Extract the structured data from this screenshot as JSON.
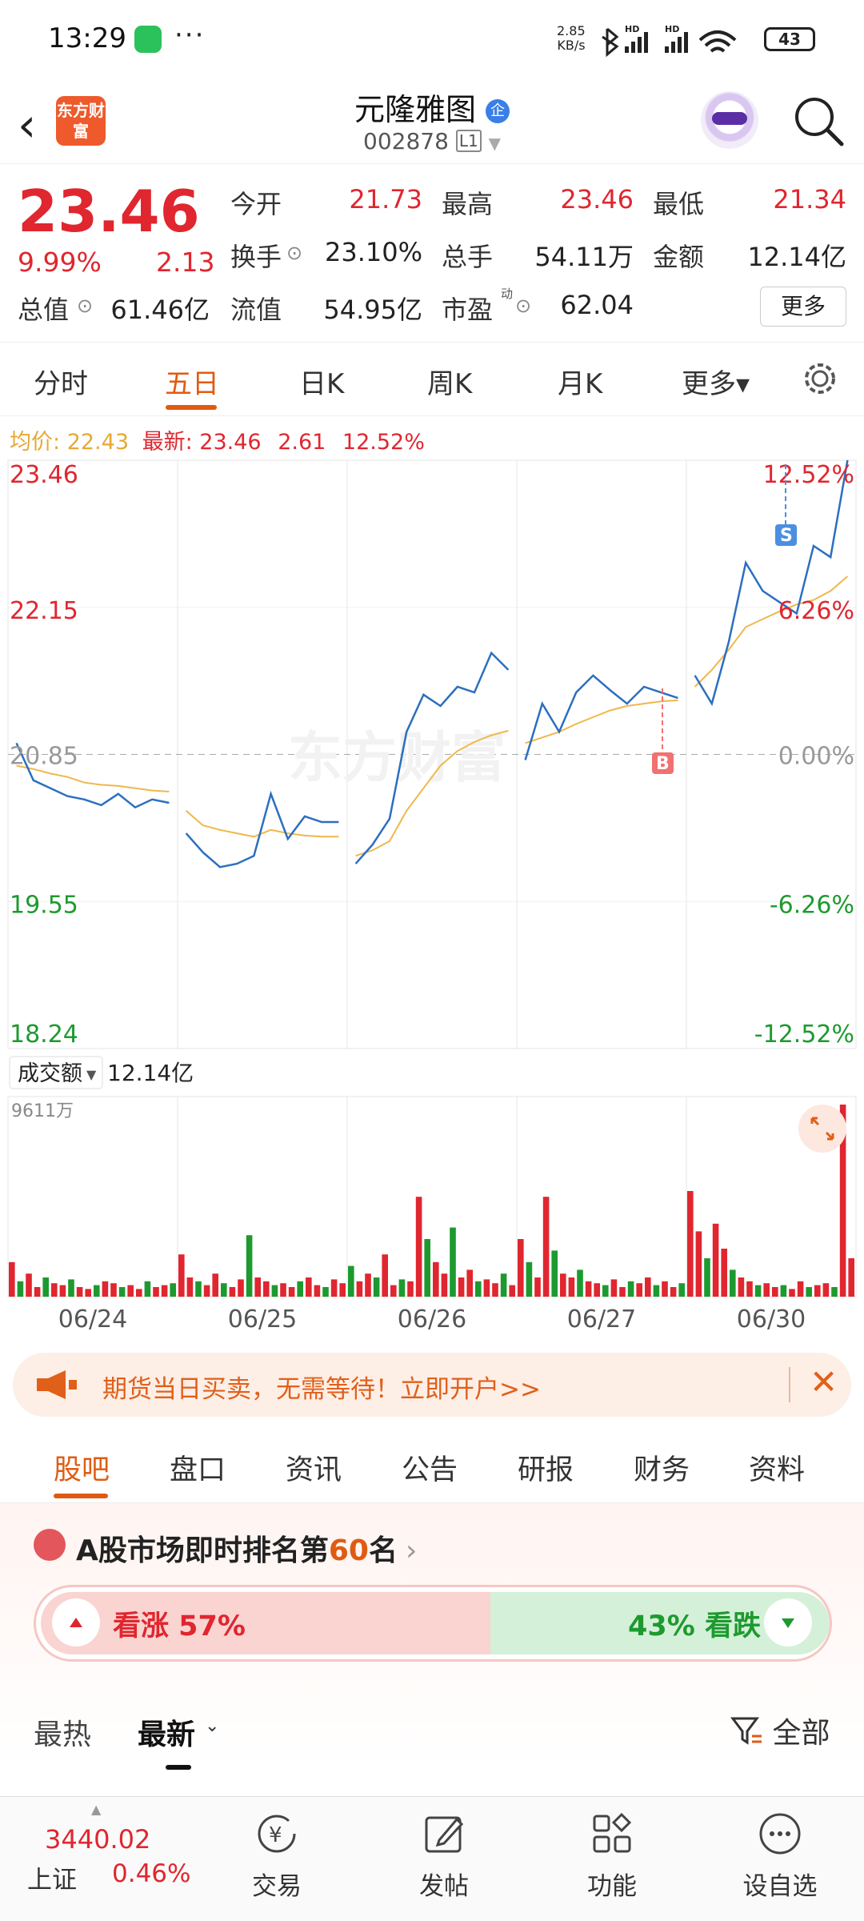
{
  "status": {
    "time": "13:29",
    "net_speed": "2.85",
    "net_unit": "KB/s",
    "battery": "43",
    "hd1": "HD",
    "hd2": "HD"
  },
  "header": {
    "back": "‹",
    "logo_text": "东方财富",
    "name": "元隆雅图",
    "badge": "企",
    "code": "002878",
    "level": "L1"
  },
  "quote": {
    "price": "23.46",
    "pct": "9.99%",
    "change": "2.13",
    "open_label": "今开",
    "open": "21.73",
    "high_label": "最高",
    "high": "23.46",
    "low_label": "最低",
    "low": "21.34",
    "turnover_label": "换手",
    "turnover": "23.10%",
    "volume_label": "总手",
    "volume": "54.11万",
    "amount_label": "金额",
    "amount": "12.14亿",
    "mktcap_label": "总值",
    "mktcap": "61.46亿",
    "float_label": "流值",
    "float": "54.95亿",
    "pe_label": "市盈",
    "pe_sup": "动",
    "pe": "62.04",
    "more": "更多"
  },
  "tabs": [
    {
      "label": "分时"
    },
    {
      "label": "五日"
    },
    {
      "label": "日K"
    },
    {
      "label": "周K"
    },
    {
      "label": "月K"
    },
    {
      "label": "更多▾"
    }
  ],
  "infoline": {
    "avg_label": "均价:",
    "avg": "22.43",
    "latest_label": "最新:",
    "latest": "23.46",
    "change": "2.61",
    "pct": "12.52%"
  },
  "chart_data": {
    "type": "line",
    "x_labels": [
      "06/24",
      "06/25",
      "06/26",
      "06/27",
      "06/30"
    ],
    "y_left_ticks": [
      "23.46",
      "22.15",
      "20.85",
      "19.55",
      "18.24"
    ],
    "y_right_ticks": [
      "12.52%",
      "6.26%",
      "0.00%",
      "-6.26%",
      "-12.52%"
    ],
    "ylim": [
      18.24,
      23.46
    ],
    "prev_close": 20.85,
    "series": [
      {
        "name": "最新",
        "color": "#2c6fbf",
        "values": [
          20.95,
          20.62,
          20.55,
          20.48,
          20.45,
          20.4,
          20.5,
          20.38,
          20.45,
          20.42,
          20.15,
          19.98,
          19.85,
          19.88,
          19.95,
          20.5,
          20.1,
          20.3,
          20.25,
          20.25,
          19.88,
          20.05,
          20.28,
          21.05,
          21.38,
          21.28,
          21.45,
          21.4,
          21.75,
          21.6,
          20.8,
          21.3,
          21.05,
          21.4,
          21.55,
          21.42,
          21.3,
          21.45,
          21.4,
          21.35,
          21.55,
          21.3,
          21.85,
          22.55,
          22.3,
          22.2,
          22.1,
          22.7,
          22.6,
          23.46
        ]
      },
      {
        "name": "均价",
        "color": "#f0b74a",
        "values": [
          20.75,
          20.72,
          20.68,
          20.65,
          20.6,
          20.58,
          20.57,
          20.55,
          20.53,
          20.52,
          20.35,
          20.22,
          20.18,
          20.15,
          20.12,
          20.18,
          20.15,
          20.13,
          20.12,
          20.12,
          19.95,
          20.0,
          20.08,
          20.35,
          20.55,
          20.75,
          20.88,
          20.96,
          21.02,
          21.06,
          20.95,
          21.0,
          21.05,
          21.12,
          21.18,
          21.24,
          21.28,
          21.3,
          21.32,
          21.33,
          21.45,
          21.6,
          21.78,
          21.98,
          22.05,
          22.12,
          22.18,
          22.22,
          22.3,
          22.43
        ]
      }
    ],
    "volume": {
      "label": "成交额",
      "total": "12.14亿",
      "max_label": "9611万",
      "bars": [
        0.18,
        0.08,
        0.12,
        0.05,
        0.1,
        0.07,
        0.06,
        0.09,
        0.05,
        0.04,
        0.06,
        0.08,
        0.07,
        0.05,
        0.06,
        0.04,
        0.08,
        0.05,
        0.06,
        0.07,
        0.22,
        0.1,
        0.08,
        0.06,
        0.12,
        0.07,
        0.05,
        0.09,
        0.32,
        0.1,
        0.08,
        0.06,
        0.07,
        0.05,
        0.08,
        0.1,
        0.06,
        0.05,
        0.09,
        0.07,
        0.16,
        0.08,
        0.12,
        0.1,
        0.22,
        0.06,
        0.09,
        0.08,
        0.52,
        0.3,
        0.18,
        0.12,
        0.36,
        0.1,
        0.14,
        0.08,
        0.09,
        0.07,
        0.12,
        0.06,
        0.3,
        0.18,
        0.1,
        0.52,
        0.24,
        0.12,
        0.1,
        0.14,
        0.08,
        0.07,
        0.06,
        0.09,
        0.05,
        0.08,
        0.07,
        0.1,
        0.06,
        0.08,
        0.05,
        0.07,
        0.55,
        0.34,
        0.2,
        0.38,
        0.25,
        0.14,
        0.1,
        0.08,
        0.06,
        0.07,
        0.05,
        0.06,
        0.04,
        0.08,
        0.05,
        0.06,
        0.07,
        0.05,
        1.0,
        0.2
      ]
    }
  },
  "ad": {
    "text": "期货当日买卖，无需等待！立即开户>>",
    "close": "✕"
  },
  "section_tabs": [
    {
      "label": "股吧"
    },
    {
      "label": "盘口"
    },
    {
      "label": "资讯"
    },
    {
      "label": "公告"
    },
    {
      "label": "研报"
    },
    {
      "label": "财务"
    },
    {
      "label": "资料"
    }
  ],
  "sentiment": {
    "rank_prefix": "A股市场即时排名第",
    "rank": "60",
    "rank_suffix": "名",
    "up_label": "看涨 57%",
    "down_label": "43% 看跌",
    "up_pct": 0.57
  },
  "feed_tabs": {
    "hot": "最热",
    "latest": "最新",
    "filter": "全部"
  },
  "bottom": {
    "index_value": "3440.02",
    "index_name": "上证",
    "index_pct": "0.46%",
    "nav": [
      {
        "label": "交易"
      },
      {
        "label": "发帖"
      },
      {
        "label": "功能"
      },
      {
        "label": "设自选"
      }
    ]
  },
  "colors": {
    "up": "#e0262f",
    "down": "#1d9a2f",
    "accent": "#e05b12",
    "price_line": "#2c6fbf",
    "avg_line": "#f0b74a"
  }
}
